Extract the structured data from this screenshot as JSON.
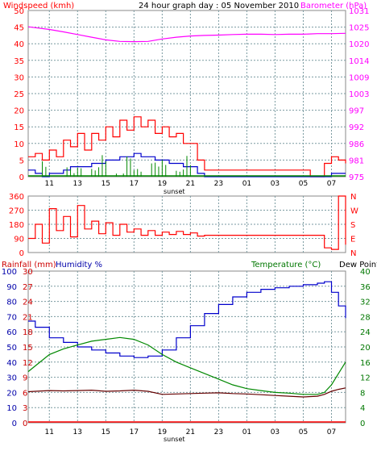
{
  "chart_data": [
    {
      "type": "line",
      "title": "24 hour graph day : 05 November 2010",
      "left_label": "Windspeed (kmh)",
      "right_label": "Barometer (hPa)",
      "left_ticks": [
        "0",
        "5",
        "10",
        "15",
        "20",
        "25",
        "30",
        "35",
        "40",
        "45",
        "50"
      ],
      "right_ticks": [
        "975",
        "981",
        "986",
        "992",
        "997",
        "1003",
        "1009",
        "1014",
        "1020",
        "1025",
        "1031"
      ],
      "x_ticks": [
        "11",
        "13",
        "15",
        "17",
        "19",
        "21",
        "23",
        "01",
        "03",
        "05",
        "07"
      ],
      "x_note": "sunset",
      "ylim_left": [
        0,
        50
      ],
      "ylim_right": [
        975,
        1031
      ],
      "colors": {
        "wind_gust": "#ff0000",
        "wind_avg": "#0000cc",
        "wind_green": "#008800",
        "barometer": "#ff00ff"
      },
      "series": [
        {
          "name": "",
          "axis": "right",
          "color": "#ff00ff",
          "x": [
            9.5,
            10,
            11,
            12,
            13,
            14,
            15,
            16,
            17,
            18,
            19,
            20,
            21,
            22,
            23,
            24,
            25,
            26,
            27,
            28,
            29,
            30,
            31,
            32
          ],
          "values": [
            1025.5,
            1025.2,
            1024.6,
            1023.8,
            1022.9,
            1022.0,
            1021.1,
            1020.6,
            1020.5,
            1020.6,
            1021.4,
            1022.0,
            1022.4,
            1022.6,
            1022.7,
            1022.9,
            1023.0,
            1023.0,
            1022.9,
            1023.0,
            1023.0,
            1023.2,
            1023.2,
            1023.3
          ]
        },
        {
          "name": "",
          "axis": "left",
          "color": "#ff0000",
          "x": [
            9.5,
            10,
            10.5,
            11,
            11.5,
            12,
            12.5,
            13,
            13.5,
            14,
            14.5,
            15,
            15.5,
            16,
            16.5,
            17,
            17.5,
            18,
            18.5,
            19,
            19.5,
            20,
            20.5,
            21,
            21.5,
            22,
            29.5,
            30,
            30.5,
            31,
            31.5,
            32
          ],
          "values": [
            6,
            7,
            5,
            8,
            6,
            11,
            9,
            13,
            8,
            13,
            11,
            15,
            12,
            17,
            14,
            18,
            15,
            17,
            13,
            15,
            12,
            13,
            10,
            10,
            5,
            2,
            0,
            0,
            4,
            6,
            5,
            4
          ]
        },
        {
          "name": "",
          "axis": "left",
          "color": "#0000cc",
          "x": [
            9.5,
            10,
            10.5,
            11,
            11.5,
            12,
            12.5,
            13,
            13.5,
            14,
            14.5,
            15,
            15.5,
            16,
            16.5,
            17,
            17.5,
            18,
            18.5,
            19,
            19.5,
            20,
            20.5,
            21,
            21.5,
            22,
            30.5,
            31,
            31.5,
            32
          ],
          "values": [
            2,
            1,
            0,
            1,
            1,
            2,
            3,
            3,
            3,
            4,
            4,
            5,
            5,
            6,
            6,
            7,
            6,
            6,
            5,
            5,
            4,
            4,
            3,
            3,
            1,
            0,
            0,
            1,
            1,
            1
          ]
        }
      ]
    },
    {
      "type": "line",
      "title": "",
      "left_ticks": [
        "0",
        "90",
        "180",
        "270",
        "360"
      ],
      "right_ticks": [
        "N",
        "W",
        "S",
        "E",
        "N"
      ],
      "ylim": [
        0,
        360
      ],
      "series": [
        {
          "name": "",
          "color": "#ff0000",
          "x": [
            9.5,
            10,
            10.5,
            11,
            11.5,
            12,
            12.5,
            13,
            13.5,
            14,
            14.5,
            15,
            15.5,
            16,
            16.5,
            17,
            17.5,
            18,
            18.5,
            19,
            19.5,
            20,
            20.5,
            21,
            21.5,
            22,
            25,
            28,
            30.4,
            30.5,
            31,
            31.5,
            32
          ],
          "values": [
            90,
            180,
            60,
            280,
            140,
            230,
            100,
            300,
            150,
            200,
            120,
            190,
            110,
            180,
            130,
            150,
            110,
            140,
            110,
            130,
            115,
            135,
            115,
            125,
            105,
            110,
            110,
            110,
            110,
            30,
            20,
            360,
            50
          ]
        }
      ]
    },
    {
      "type": "line",
      "title": "",
      "left_label_1": "Rainfall (mm)",
      "left_label_2": "Humidity %",
      "right_label": "Temperature (°C)",
      "right_label_2": "Dew Point",
      "humidity_ticks": [
        "0",
        "10",
        "20",
        "30",
        "40",
        "50",
        "60",
        "70",
        "80",
        "90",
        "100"
      ],
      "rain_ticks": [
        "0",
        "3",
        "6",
        "9",
        "12",
        "15",
        "18",
        "21",
        "24",
        "27",
        "30"
      ],
      "temp_ticks": [
        "0",
        "4",
        "8",
        "12",
        "16",
        "20",
        "24",
        "28",
        "32",
        "36",
        "40"
      ],
      "x_ticks": [
        "11",
        "13",
        "15",
        "17",
        "19",
        "21",
        "23",
        "01",
        "03",
        "05",
        "07"
      ],
      "x_note": "sunset",
      "ylim_humidity": [
        0,
        100
      ],
      "ylim_temp": [
        0,
        40
      ],
      "series": [
        {
          "name": "",
          "axis": "humidity",
          "color": "#0000cc",
          "x": [
            9.5,
            10,
            11,
            12,
            13,
            14,
            15,
            16,
            17,
            18,
            19,
            20,
            21,
            22,
            23,
            24,
            25,
            26,
            27,
            28,
            29,
            30,
            30.5,
            31,
            31.5,
            32
          ],
          "values": [
            67,
            63,
            56,
            53,
            50,
            48,
            46,
            44,
            43,
            44,
            48,
            56,
            64,
            72,
            78,
            83,
            86,
            88,
            89,
            90,
            91,
            92,
            93,
            86,
            77,
            69
          ]
        },
        {
          "name": "",
          "axis": "temp",
          "color": "#008800",
          "x": [
            9.5,
            10,
            11,
            12,
            13,
            14,
            15,
            16,
            17,
            18,
            19,
            20,
            21,
            22,
            23,
            24,
            25,
            26,
            27,
            28,
            29,
            30,
            30.5,
            31,
            31.5,
            32
          ],
          "values": [
            13.5,
            15,
            18,
            19.5,
            20.5,
            21.5,
            22,
            22.5,
            22,
            20.5,
            18,
            16,
            14.5,
            13,
            11.5,
            10,
            9,
            8.5,
            8,
            7.8,
            7.5,
            7.5,
            8,
            10,
            13,
            16
          ],
          "jagged": true
        },
        {
          "name": "",
          "axis": "temp",
          "color": "#660000",
          "x": [
            9.5,
            10,
            11,
            12,
            13,
            14,
            15,
            16,
            17,
            18,
            19,
            20,
            21,
            22,
            23,
            24,
            25,
            26,
            27,
            28,
            29,
            30,
            30.5,
            31,
            31.5,
            32
          ],
          "values": [
            8.2,
            8.3,
            8.5,
            8.4,
            8.5,
            8.6,
            8.3,
            8.4,
            8.6,
            8.3,
            7.5,
            7.6,
            7.7,
            7.8,
            7.9,
            7.7,
            7.6,
            7.4,
            7.2,
            7.0,
            6.8,
            7.0,
            7.5,
            8.3,
            8.8,
            9.2
          ],
          "jagged": true
        },
        {
          "name": "",
          "axis": "rain",
          "color": "#ff0000",
          "x": [
            9.5,
            32
          ],
          "values": [
            0,
            0
          ]
        }
      ]
    }
  ]
}
